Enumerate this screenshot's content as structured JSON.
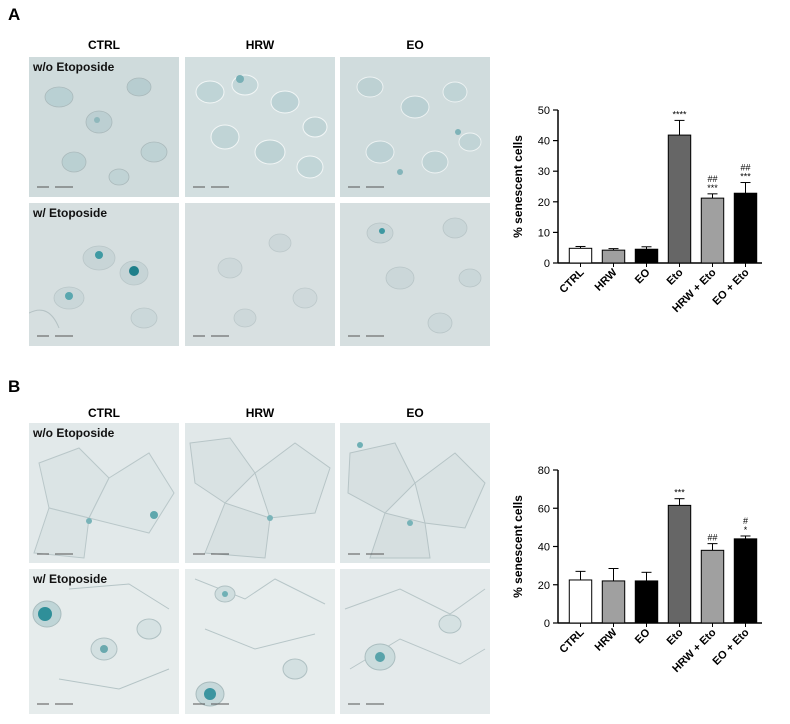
{
  "panels": [
    {
      "letter": "A",
      "columns": [
        "CTRL",
        "HRW",
        "EO"
      ],
      "rows": [
        "w/o Etoposide",
        "w/ Etoposide"
      ],
      "chart_data": {
        "type": "bar",
        "categories": [
          "CTRL",
          "HRW",
          "EO",
          "Eto",
          "HRW + Eto",
          "EO + Eto"
        ],
        "values": [
          4.8,
          4.2,
          4.5,
          41.8,
          21.2,
          22.8
        ],
        "errors": [
          0.6,
          0.5,
          0.8,
          4.8,
          1.4,
          3.5
        ],
        "annotations": [
          {
            "bar": "Eto",
            "lines": [
              "****"
            ]
          },
          {
            "bar": "HRW + Eto",
            "lines": [
              "##",
              "***"
            ]
          },
          {
            "bar": "EO + Eto",
            "lines": [
              "##",
              "***"
            ]
          }
        ],
        "bar_colors": [
          "#ffffff",
          "#a0a0a0",
          "#000000",
          "#666666",
          "#a0a0a0",
          "#000000"
        ],
        "ylabel": "% senescent cells",
        "ylim": [
          0,
          50
        ],
        "yticks": [
          0,
          10,
          20,
          30,
          40,
          50
        ]
      }
    },
    {
      "letter": "B",
      "columns": [
        "CTRL",
        "HRW",
        "EO"
      ],
      "rows": [
        "w/o Etoposide",
        "w/ Etoposide"
      ],
      "chart_data": {
        "type": "bar",
        "categories": [
          "CTRL",
          "HRW",
          "EO",
          "Eto",
          "HRW + Eto",
          "EO + Eto"
        ],
        "values": [
          22.5,
          22.0,
          22.0,
          61.5,
          38.0,
          44.0
        ],
        "errors": [
          4.5,
          6.5,
          4.5,
          3.5,
          3.5,
          1.5
        ],
        "annotations": [
          {
            "bar": "Eto",
            "lines": [
              "***"
            ]
          },
          {
            "bar": "HRW + Eto",
            "lines": [
              "##"
            ]
          },
          {
            "bar": "EO + Eto",
            "lines": [
              "#",
              "*"
            ]
          }
        ],
        "bar_colors": [
          "#ffffff",
          "#a0a0a0",
          "#000000",
          "#666666",
          "#a0a0a0",
          "#000000"
        ],
        "ylabel": "% senescent cells",
        "ylim": [
          0,
          80
        ],
        "yticks": [
          0,
          20,
          40,
          60,
          80
        ]
      }
    }
  ]
}
